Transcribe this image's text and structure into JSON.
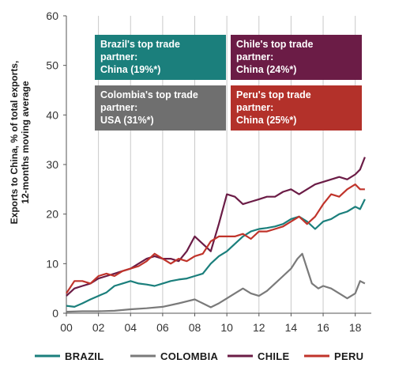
{
  "chart_data": {
    "type": "line",
    "ylabel": "Exports to China, % of total exports, 12-months moving average",
    "ylabel_lines": [
      "Exports to China, % of total exports,",
      "12-months moving average"
    ],
    "xlabel": "",
    "xlim": [
      2000,
      2019
    ],
    "ylim": [
      0,
      60
    ],
    "x_ticks": [
      2000,
      2002,
      2004,
      2006,
      2008,
      2010,
      2012,
      2014,
      2016,
      2018
    ],
    "x_tick_labels": [
      "00",
      "02",
      "04",
      "06",
      "08",
      "10",
      "12",
      "14",
      "16",
      "18"
    ],
    "y_ticks": [
      0,
      10,
      20,
      30,
      40,
      50,
      60
    ],
    "y_tick_labels": [
      "0",
      "10",
      "20",
      "30",
      "40",
      "50",
      "60"
    ],
    "grid": "vertical",
    "legend_position": "bottom",
    "series": [
      {
        "name": "BRAZIL",
        "color": "#1b7f7c",
        "points": [
          [
            2000,
            1.5
          ],
          [
            2000.5,
            1.3
          ],
          [
            2001,
            2.0
          ],
          [
            2001.5,
            2.8
          ],
          [
            2002,
            3.5
          ],
          [
            2002.5,
            4.2
          ],
          [
            2003,
            5.5
          ],
          [
            2003.5,
            6.0
          ],
          [
            2004,
            6.5
          ],
          [
            2004.5,
            6.0
          ],
          [
            2005,
            5.8
          ],
          [
            2005.5,
            5.5
          ],
          [
            2006,
            6.0
          ],
          [
            2006.5,
            6.5
          ],
          [
            2007,
            6.8
          ],
          [
            2007.5,
            7.0
          ],
          [
            2008,
            7.5
          ],
          [
            2008.5,
            8.0
          ],
          [
            2009,
            10.0
          ],
          [
            2009.5,
            11.5
          ],
          [
            2010,
            12.5
          ],
          [
            2010.5,
            14.0
          ],
          [
            2011,
            15.5
          ],
          [
            2011.5,
            16.5
          ],
          [
            2012,
            17.0
          ],
          [
            2012.5,
            17.2
          ],
          [
            2013,
            17.5
          ],
          [
            2013.5,
            18.0
          ],
          [
            2014,
            19.0
          ],
          [
            2014.5,
            19.5
          ],
          [
            2015,
            18.5
          ],
          [
            2015.5,
            17.0
          ],
          [
            2016,
            18.5
          ],
          [
            2016.5,
            19.0
          ],
          [
            2017,
            20.0
          ],
          [
            2017.5,
            20.5
          ],
          [
            2018,
            21.5
          ],
          [
            2018.3,
            21.0
          ],
          [
            2018.6,
            23.0
          ]
        ]
      },
      {
        "name": "COLOMBIA",
        "color": "#7a7a7a",
        "points": [
          [
            2000,
            0.3
          ],
          [
            2001,
            0.4
          ],
          [
            2002,
            0.4
          ],
          [
            2003,
            0.5
          ],
          [
            2004,
            0.8
          ],
          [
            2005,
            1.0
          ],
          [
            2006,
            1.3
          ],
          [
            2007,
            2.0
          ],
          [
            2008,
            2.8
          ],
          [
            2008.5,
            2.0
          ],
          [
            2009,
            1.2
          ],
          [
            2009.5,
            2.0
          ],
          [
            2010,
            3.0
          ],
          [
            2010.5,
            4.0
          ],
          [
            2011,
            5.0
          ],
          [
            2011.5,
            4.0
          ],
          [
            2012,
            3.5
          ],
          [
            2012.5,
            4.5
          ],
          [
            2013,
            6.0
          ],
          [
            2013.5,
            7.5
          ],
          [
            2014,
            9.0
          ],
          [
            2014.4,
            11.0
          ],
          [
            2014.7,
            12.0
          ],
          [
            2015,
            9.0
          ],
          [
            2015.3,
            6.0
          ],
          [
            2015.7,
            5.0
          ],
          [
            2016,
            5.5
          ],
          [
            2016.5,
            5.0
          ],
          [
            2017,
            4.0
          ],
          [
            2017.5,
            3.0
          ],
          [
            2018,
            4.0
          ],
          [
            2018.3,
            6.5
          ],
          [
            2018.6,
            6.0
          ]
        ]
      },
      {
        "name": "CHILE",
        "color": "#6b1c46",
        "points": [
          [
            2000,
            3.5
          ],
          [
            2000.5,
            5.0
          ],
          [
            2001,
            5.5
          ],
          [
            2001.5,
            6.0
          ],
          [
            2002,
            7.0
          ],
          [
            2002.5,
            7.5
          ],
          [
            2003,
            8.0
          ],
          [
            2003.5,
            8.5
          ],
          [
            2004,
            9.0
          ],
          [
            2004.5,
            10.0
          ],
          [
            2005,
            11.0
          ],
          [
            2005.5,
            11.5
          ],
          [
            2006,
            11.0
          ],
          [
            2006.5,
            11.0
          ],
          [
            2007,
            10.5
          ],
          [
            2007.5,
            12.5
          ],
          [
            2008,
            15.5
          ],
          [
            2008.5,
            14.0
          ],
          [
            2009,
            12.5
          ],
          [
            2009.5,
            18.0
          ],
          [
            2010,
            24.0
          ],
          [
            2010.5,
            23.5
          ],
          [
            2011,
            22.0
          ],
          [
            2011.5,
            22.5
          ],
          [
            2012,
            23.0
          ],
          [
            2012.5,
            23.5
          ],
          [
            2013,
            23.5
          ],
          [
            2013.5,
            24.5
          ],
          [
            2014,
            25.0
          ],
          [
            2014.5,
            24.0
          ],
          [
            2015,
            25.0
          ],
          [
            2015.5,
            26.0
          ],
          [
            2016,
            26.5
          ],
          [
            2016.5,
            27.0
          ],
          [
            2017,
            27.5
          ],
          [
            2017.5,
            27.0
          ],
          [
            2018,
            28.0
          ],
          [
            2018.3,
            29.0
          ],
          [
            2018.6,
            31.5
          ]
        ]
      },
      {
        "name": "PERU",
        "color": "#c0342b",
        "points": [
          [
            2000,
            4.0
          ],
          [
            2000.5,
            6.5
          ],
          [
            2001,
            6.5
          ],
          [
            2001.5,
            6.0
          ],
          [
            2002,
            7.5
          ],
          [
            2002.5,
            8.0
          ],
          [
            2003,
            7.5
          ],
          [
            2003.5,
            8.5
          ],
          [
            2004,
            9.0
          ],
          [
            2004.5,
            9.5
          ],
          [
            2005,
            10.5
          ],
          [
            2005.5,
            12.0
          ],
          [
            2006,
            11.0
          ],
          [
            2006.5,
            10.0
          ],
          [
            2007,
            11.0
          ],
          [
            2007.5,
            10.5
          ],
          [
            2008,
            11.5
          ],
          [
            2008.5,
            12.0
          ],
          [
            2009,
            14.5
          ],
          [
            2009.5,
            15.5
          ],
          [
            2010,
            15.5
          ],
          [
            2010.5,
            15.5
          ],
          [
            2011,
            16.0
          ],
          [
            2011.5,
            15.0
          ],
          [
            2012,
            16.5
          ],
          [
            2012.5,
            16.5
          ],
          [
            2013,
            17.0
          ],
          [
            2013.5,
            17.5
          ],
          [
            2014,
            18.5
          ],
          [
            2014.5,
            19.5
          ],
          [
            2015,
            18.0
          ],
          [
            2015.5,
            19.5
          ],
          [
            2016,
            22.0
          ],
          [
            2016.5,
            24.0
          ],
          [
            2017,
            23.5
          ],
          [
            2017.5,
            25.0
          ],
          [
            2018,
            26.0
          ],
          [
            2018.3,
            25.0
          ],
          [
            2018.6,
            25.0
          ]
        ]
      }
    ],
    "annotations": [
      {
        "lines": [
          "Brazil's top trade",
          "partner:",
          "China (19%*)"
        ],
        "color": "#1b7f7c"
      },
      {
        "lines": [
          "Chile's top trade",
          "partner:",
          "China (24%*)"
        ],
        "color": "#6b1c46"
      },
      {
        "lines": [
          "Colombia's top trade",
          "partner:",
          "USA (31%*)"
        ],
        "color": "#6f6f6f"
      },
      {
        "lines": [
          "Peru's top trade",
          "partner:",
          "China (25%*)"
        ],
        "color": "#b3312a"
      }
    ]
  }
}
